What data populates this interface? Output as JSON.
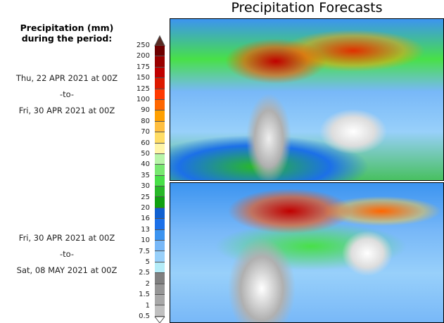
{
  "title": "Precipitation Forecasts",
  "legend_header": [
    "Precipitation (mm)",
    "during the period:"
  ],
  "periods": [
    {
      "start": "Thu, 22 APR 2021 at 00Z",
      "sep": "-to-",
      "end": "Fri, 30 APR 2021 at 00Z"
    },
    {
      "start": "Fri, 30 APR 2021 at 00Z",
      "sep": "-to-",
      "end": "Sat, 08 MAY 2021 at 00Z"
    }
  ],
  "colorbar": {
    "labels": [
      "250",
      "200",
      "175",
      "150",
      "125",
      "100",
      "90",
      "80",
      "70",
      "60",
      "50",
      "40",
      "35",
      "30",
      "25",
      "20",
      "16",
      "13",
      "10",
      "7.5",
      "5",
      "2.5",
      "2",
      "1.5",
      "1",
      "0.5"
    ],
    "colors": [
      "#6e0000",
      "#9a0000",
      "#c00000",
      "#dd1a00",
      "#ff3a00",
      "#ff6600",
      "#ffa000",
      "#ffbf40",
      "#ffdd66",
      "#fff5a8",
      "#b8f5a8",
      "#78e870",
      "#48e048",
      "#28b828",
      "#10a010",
      "#1060d0",
      "#1c70e8",
      "#3c94f0",
      "#78b8f8",
      "#98d0fa",
      "#b4ecf8",
      "#808080",
      "#969696",
      "#a8a8a8",
      "#c0c0c0"
    ],
    "over_color": "#5a2a22"
  }
}
